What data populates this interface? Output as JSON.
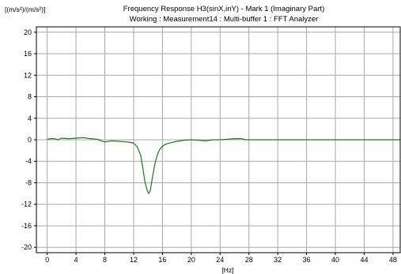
{
  "chart_data": {
    "type": "line",
    "title": "Frequency Response H3(sinX,inY) - Mark 1 (Imaginary Part)",
    "subtitle": "Working : Measurement14 : Multi-buffer 1 : FFT Analyzer",
    "ylabel": "[(m/s²)/(m/s²)]",
    "xlabel": "[Hz]",
    "xlim": [
      -1.5,
      49
    ],
    "ylim": [
      -21,
      21
    ],
    "x_ticks": [
      0,
      4,
      8,
      12,
      16,
      20,
      24,
      28,
      32,
      36,
      40,
      44,
      48
    ],
    "y_ticks": [
      20,
      16,
      12,
      8,
      4,
      0,
      -4,
      -8,
      -12,
      -16,
      -20
    ],
    "grid": true,
    "series": [
      {
        "color": "#1a7a1a",
        "x": [
          0,
          0.5,
          1,
          1.5,
          2,
          3,
          4,
          5,
          6,
          7,
          7.5,
          8,
          9,
          10,
          11,
          11.5,
          12,
          12.5,
          13,
          13.3,
          13.6,
          13.9,
          14.1,
          14.3,
          14.6,
          15,
          15.3,
          15.6,
          16,
          16.5,
          17,
          18,
          19,
          20,
          21,
          22,
          23,
          24,
          25,
          26,
          27,
          27.5,
          28,
          30,
          32,
          34,
          36,
          38,
          40,
          42,
          44,
          46,
          48,
          49
        ],
        "values": [
          0.1,
          0.2,
          0.2,
          0.0,
          0.3,
          0.2,
          0.3,
          0.4,
          0.2,
          0.1,
          -0.2,
          -0.4,
          -0.2,
          -0.3,
          -0.4,
          -0.5,
          -0.6,
          -1.3,
          -3.0,
          -5.5,
          -8.0,
          -9.5,
          -10.0,
          -9.5,
          -7.0,
          -4.2,
          -2.8,
          -1.8,
          -1.2,
          -0.8,
          -0.6,
          -0.3,
          -0.1,
          0.0,
          -0.1,
          -0.2,
          0.0,
          0.0,
          0.1,
          0.2,
          0.2,
          0.0,
          0.0,
          0.0,
          0.0,
          0.0,
          0.0,
          0.0,
          0.0,
          0.0,
          0.0,
          0.0,
          0.0,
          0.0
        ]
      }
    ]
  },
  "colors": {
    "grid": "#a8a8a8",
    "axis": "#000000",
    "line": "#1a7a1a"
  }
}
